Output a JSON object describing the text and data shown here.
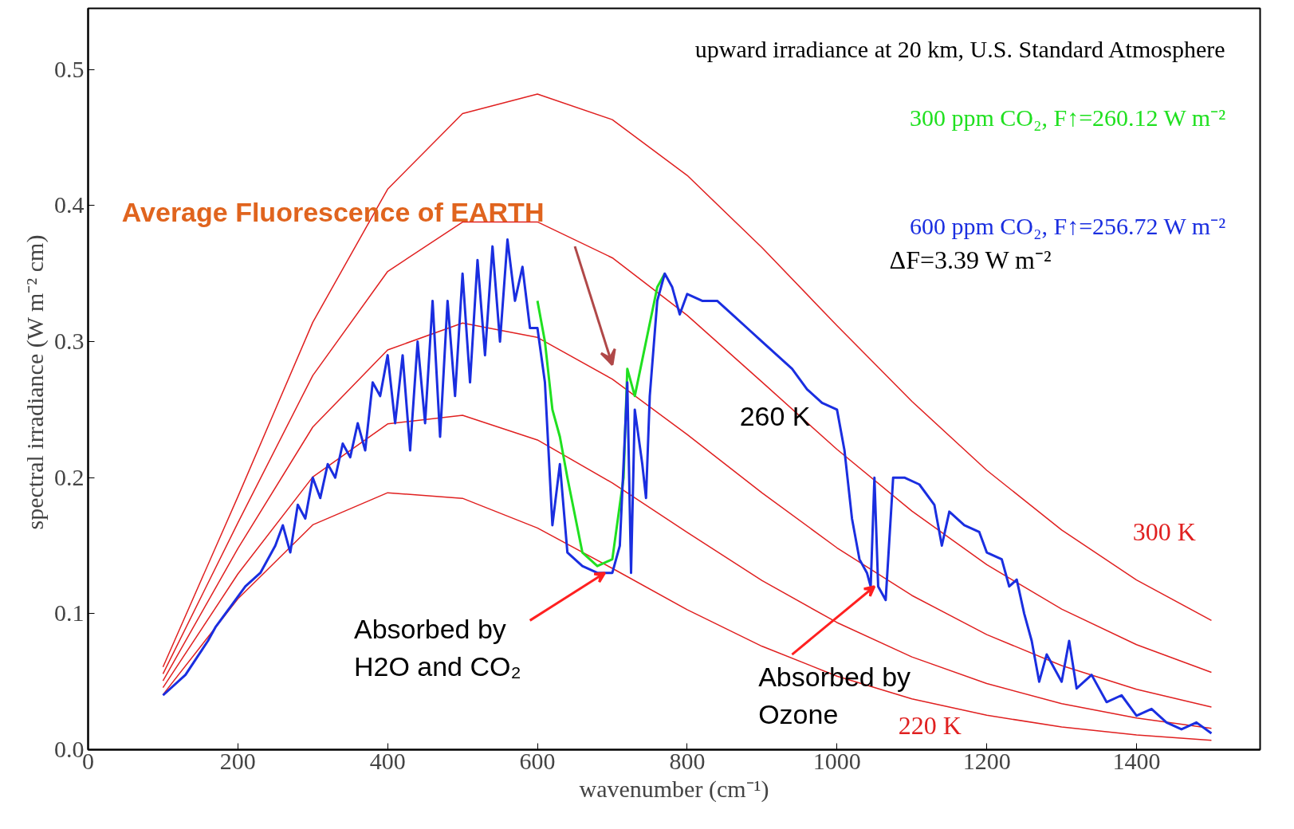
{
  "chart_data": {
    "type": "line",
    "title": "upward irradiance at 20 km, U.S. Standard Atmosphere",
    "xlabel": "wavenumber (cm⁻¹)",
    "ylabel": "spectral irradiance (W  m⁻² cm)",
    "x": [
      100,
      200,
      300,
      400,
      500,
      600,
      700,
      800,
      900,
      1000,
      1100,
      1200,
      1300,
      1400,
      1500
    ],
    "xlim": [
      0,
      1565
    ],
    "ylim": [
      0,
      0.545
    ],
    "xticks": [
      0,
      200,
      400,
      600,
      800,
      1000,
      1200,
      1400
    ],
    "yticks": [
      {
        "value": 0,
        "label": "0.0"
      },
      {
        "value": 0.1,
        "label": "0.1"
      },
      {
        "value": 0.2,
        "label": "0.2"
      },
      {
        "value": 0.3,
        "label": "0.3"
      },
      {
        "value": 0.4,
        "label": "0.4"
      },
      {
        "value": 0.5,
        "label": "0.5"
      }
    ],
    "grid": false,
    "marker": "none",
    "line_style": "solid",
    "series": [
      {
        "color": "#e02020",
        "values": [
          0.0608,
          0.186,
          0.3142,
          0.4121,
          0.4677,
          0.482,
          0.4632,
          0.4222,
          0.369,
          0.3118,
          0.2561,
          0.2054,
          0.1615,
          0.1248,
          0.095
        ]
      },
      {
        "color": "#e02020",
        "values": [
          0.0557,
          0.1668,
          0.2751,
          0.3516,
          0.3879,
          0.388,
          0.3616,
          0.3193,
          0.2702,
          0.2208,
          0.1754,
          0.136,
          0.1034,
          0.0772,
          0.0568
        ]
      },
      {
        "color": "#e02020",
        "values": [
          0.0506,
          0.1479,
          0.2372,
          0.2939,
          0.3137,
          0.3031,
          0.2724,
          0.2317,
          0.1888,
          0.1484,
          0.1134,
          0.0846,
          0.0618,
          0.0444,
          0.0314
        ]
      },
      {
        "color": "#e02020",
        "values": [
          0.0456,
          0.1292,
          0.2005,
          0.2395,
          0.2458,
          0.2277,
          0.1961,
          0.1597,
          0.1243,
          0.0935,
          0.0682,
          0.0486,
          0.0339,
          0.0233,
          0.0157
        ]
      },
      {
        "color": "#e02020",
        "values": [
          0.0405,
          0.1109,
          0.1653,
          0.1889,
          0.1848,
          0.163,
          0.1333,
          0.1029,
          0.076,
          0.0541,
          0.0374,
          0.0253,
          0.0167,
          0.0108,
          0.0069
        ]
      },
      {
        "name": "300 ppm CO₂, F↑=260.12 W m⁻²",
        "color": "#20e020",
        "x": [
          600,
          610,
          620,
          630,
          640,
          660,
          680,
          700,
          715,
          720,
          730,
          760,
          770
        ],
        "values": [
          0.33,
          0.3,
          0.25,
          0.23,
          0.2,
          0.145,
          0.135,
          0.14,
          0.2,
          0.28,
          0.26,
          0.34,
          0.35
        ]
      },
      {
        "name": "600 ppm CO₂, F↑=256.72 W m⁻²",
        "color": "#1a2ee0",
        "x": [
          100,
          130,
          160,
          170,
          190,
          210,
          230,
          250,
          260,
          270,
          280,
          290,
          300,
          310,
          320,
          330,
          340,
          350,
          360,
          370,
          380,
          390,
          400,
          410,
          420,
          430,
          440,
          450,
          460,
          470,
          480,
          490,
          500,
          510,
          520,
          530,
          540,
          550,
          560,
          570,
          580,
          590,
          600,
          610,
          620,
          630,
          640,
          660,
          680,
          700,
          710,
          720,
          725,
          730,
          740,
          745,
          750,
          760,
          770,
          780,
          790,
          800,
          820,
          840,
          860,
          880,
          900,
          920,
          940,
          960,
          980,
          1000,
          1010,
          1020,
          1030,
          1040,
          1045,
          1050,
          1055,
          1065,
          1075,
          1090,
          1110,
          1130,
          1140,
          1150,
          1170,
          1190,
          1200,
          1220,
          1230,
          1240,
          1250,
          1260,
          1270,
          1280,
          1300,
          1310,
          1320,
          1340,
          1360,
          1380,
          1400,
          1420,
          1440,
          1460,
          1480,
          1500
        ],
        "values": [
          0.04,
          0.055,
          0.08,
          0.09,
          0.105,
          0.12,
          0.13,
          0.15,
          0.165,
          0.145,
          0.18,
          0.17,
          0.2,
          0.185,
          0.21,
          0.2,
          0.225,
          0.215,
          0.24,
          0.22,
          0.27,
          0.26,
          0.29,
          0.24,
          0.29,
          0.22,
          0.3,
          0.24,
          0.33,
          0.23,
          0.33,
          0.26,
          0.35,
          0.27,
          0.36,
          0.29,
          0.37,
          0.3,
          0.375,
          0.33,
          0.355,
          0.31,
          0.31,
          0.27,
          0.165,
          0.21,
          0.145,
          0.135,
          0.13,
          0.13,
          0.15,
          0.27,
          0.13,
          0.25,
          0.21,
          0.185,
          0.26,
          0.33,
          0.35,
          0.34,
          0.32,
          0.335,
          0.33,
          0.33,
          0.32,
          0.31,
          0.3,
          0.29,
          0.28,
          0.265,
          0.255,
          0.25,
          0.22,
          0.17,
          0.14,
          0.13,
          0.12,
          0.2,
          0.12,
          0.11,
          0.2,
          0.2,
          0.195,
          0.18,
          0.15,
          0.175,
          0.165,
          0.16,
          0.145,
          0.14,
          0.12,
          0.125,
          0.1,
          0.08,
          0.05,
          0.07,
          0.05,
          0.08,
          0.045,
          0.055,
          0.035,
          0.04,
          0.025,
          0.03,
          0.02,
          0.015,
          0.02,
          0.012
        ]
      }
    ],
    "annotations": [
      "Average Fluorescence of EARTH",
      "260 K",
      "300 K",
      "220 K",
      {
        "text": "Absorbed by\nH2O and CO₂",
        "x": 690,
        "y": 0.13
      },
      {
        "text": "Absorbed by\nOzone",
        "x": 1050,
        "y": 0.12
      },
      "ΔF=3.39 W m⁻²"
    ]
  }
}
